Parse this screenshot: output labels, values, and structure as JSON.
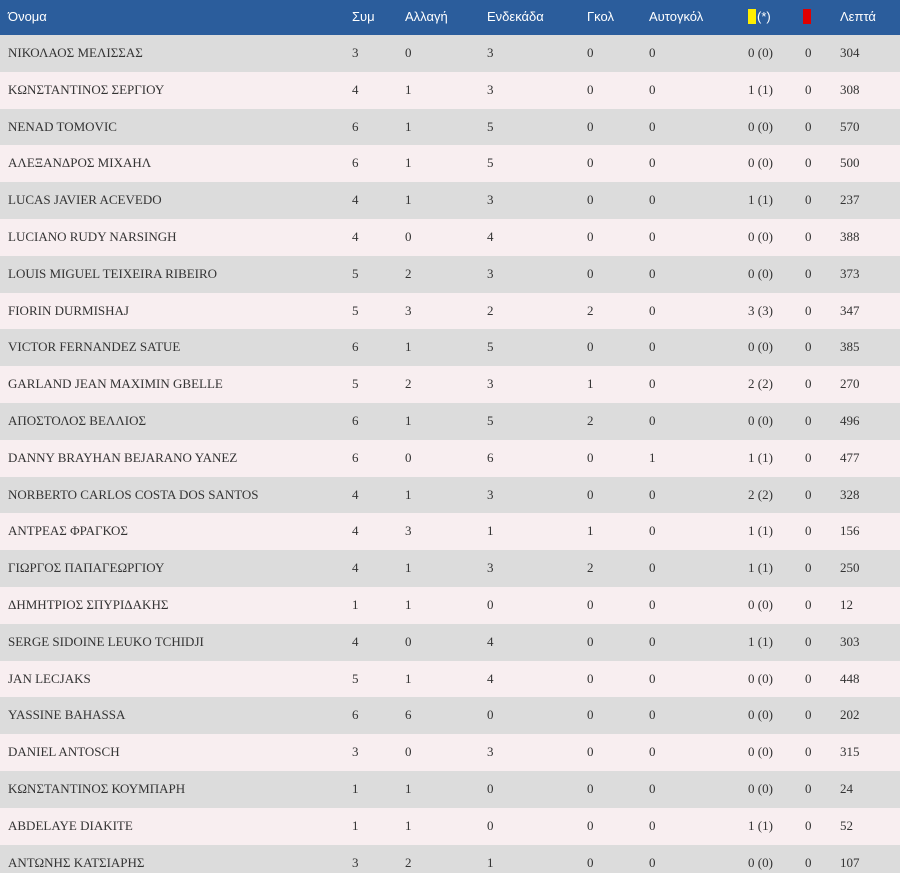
{
  "colors": {
    "header_bg": "#2b5d9c",
    "row_odd": "#dcdcdc",
    "row_even": "#f8eef0",
    "yellow_card": "#ffee00",
    "red_card": "#e00000"
  },
  "table": {
    "headers": {
      "name": "Όνομα",
      "apps": "Συμ",
      "subs": "Αλλαγή",
      "starts": "Ενδεκάδα",
      "goals": "Γκολ",
      "own_goals": "Αυτογκόλ",
      "yellow": "(*)",
      "yellow_icon": "yellow-card-icon",
      "red_icon": "red-card-icon",
      "minutes": "Λεπτά"
    },
    "rows": [
      {
        "name": "ΝΙΚΟΛΑΟΣ ΜΕΛΙΣΣΑΣ",
        "apps": "3",
        "subs": "0",
        "starts": "3",
        "goals": "0",
        "own_goals": "0",
        "yellow": "0 (0)",
        "red": "0",
        "minutes": "304"
      },
      {
        "name": "ΚΩΝΣΤΑΝΤΙΝΟΣ ΣΕΡΓΙΟΥ",
        "apps": "4",
        "subs": "1",
        "starts": "3",
        "goals": "0",
        "own_goals": "0",
        "yellow": "1 (1)",
        "red": "0",
        "minutes": "308"
      },
      {
        "name": "NENAD TOMOVIC",
        "apps": "6",
        "subs": "1",
        "starts": "5",
        "goals": "0",
        "own_goals": "0",
        "yellow": "0 (0)",
        "red": "0",
        "minutes": "570"
      },
      {
        "name": "ΑΛΕΞΑΝΔΡΟΣ ΜΙΧΑΗΛ",
        "apps": "6",
        "subs": "1",
        "starts": "5",
        "goals": "0",
        "own_goals": "0",
        "yellow": "0 (0)",
        "red": "0",
        "minutes": "500"
      },
      {
        "name": "LUCAS JAVIER ACEVEDO",
        "apps": "4",
        "subs": "1",
        "starts": "3",
        "goals": "0",
        "own_goals": "0",
        "yellow": "1 (1)",
        "red": "0",
        "minutes": "237"
      },
      {
        "name": "LUCIANO RUDY NARSINGH",
        "apps": "4",
        "subs": "0",
        "starts": "4",
        "goals": "0",
        "own_goals": "0",
        "yellow": "0 (0)",
        "red": "0",
        "minutes": "388"
      },
      {
        "name": "LOUIS MIGUEL TEIXEIRA RIBEIRO",
        "apps": "5",
        "subs": "2",
        "starts": "3",
        "goals": "0",
        "own_goals": "0",
        "yellow": "0 (0)",
        "red": "0",
        "minutes": "373"
      },
      {
        "name": "FIORIN DURMISHAJ",
        "apps": "5",
        "subs": "3",
        "starts": "2",
        "goals": "2",
        "own_goals": "0",
        "yellow": "3 (3)",
        "red": "0",
        "minutes": "347"
      },
      {
        "name": "VICTOR FERNANDEZ SATUE",
        "apps": "6",
        "subs": "1",
        "starts": "5",
        "goals": "0",
        "own_goals": "0",
        "yellow": "0 (0)",
        "red": "0",
        "minutes": "385"
      },
      {
        "name": "GARLAND JEAN MAXIMIN GBELLE",
        "apps": "5",
        "subs": "2",
        "starts": "3",
        "goals": "1",
        "own_goals": "0",
        "yellow": "2 (2)",
        "red": "0",
        "minutes": "270"
      },
      {
        "name": "ΑΠΟΣΤΟΛΟΣ ΒΕΛΛΙΟΣ",
        "apps": "6",
        "subs": "1",
        "starts": "5",
        "goals": "2",
        "own_goals": "0",
        "yellow": "0 (0)",
        "red": "0",
        "minutes": "496"
      },
      {
        "name": "DANNY BRAYHAN BEJARANO YANEZ",
        "apps": "6",
        "subs": "0",
        "starts": "6",
        "goals": "0",
        "own_goals": "1",
        "yellow": "1 (1)",
        "red": "0",
        "minutes": "477"
      },
      {
        "name": "NORBERTO CARLOS COSTA DOS SANTOS",
        "apps": "4",
        "subs": "1",
        "starts": "3",
        "goals": "0",
        "own_goals": "0",
        "yellow": "2 (2)",
        "red": "0",
        "minutes": "328"
      },
      {
        "name": "ΑΝΤΡΕΑΣ ΦΡΑΓΚΟΣ",
        "apps": "4",
        "subs": "3",
        "starts": "1",
        "goals": "1",
        "own_goals": "0",
        "yellow": "1 (1)",
        "red": "0",
        "minutes": "156"
      },
      {
        "name": "ΓΙΩΡΓΟΣ ΠΑΠΑΓΕΩΡΓΙΟΥ",
        "apps": "4",
        "subs": "1",
        "starts": "3",
        "goals": "2",
        "own_goals": "0",
        "yellow": "1 (1)",
        "red": "0",
        "minutes": "250"
      },
      {
        "name": "ΔΗΜΗΤΡΙΟΣ ΣΠΥΡΙΔΑΚΗΣ",
        "apps": "1",
        "subs": "1",
        "starts": "0",
        "goals": "0",
        "own_goals": "0",
        "yellow": "0 (0)",
        "red": "0",
        "minutes": "12"
      },
      {
        "name": "SERGE SIDOINE LEUKO TCHIDJI",
        "apps": "4",
        "subs": "0",
        "starts": "4",
        "goals": "0",
        "own_goals": "0",
        "yellow": "1 (1)",
        "red": "0",
        "minutes": "303"
      },
      {
        "name": "JAN LECJAKS",
        "apps": "5",
        "subs": "1",
        "starts": "4",
        "goals": "0",
        "own_goals": "0",
        "yellow": "0 (0)",
        "red": "0",
        "minutes": "448"
      },
      {
        "name": "YASSINE BAHASSA",
        "apps": "6",
        "subs": "6",
        "starts": "0",
        "goals": "0",
        "own_goals": "0",
        "yellow": "0 (0)",
        "red": "0",
        "minutes": "202"
      },
      {
        "name": "DANIEL ANTOSCH",
        "apps": "3",
        "subs": "0",
        "starts": "3",
        "goals": "0",
        "own_goals": "0",
        "yellow": "0 (0)",
        "red": "0",
        "minutes": "315"
      },
      {
        "name": "ΚΩΝΣΤΑΝΤΙΝΟΣ ΚΟΥΜΠΑΡΗ",
        "apps": "1",
        "subs": "1",
        "starts": "0",
        "goals": "0",
        "own_goals": "0",
        "yellow": "0 (0)",
        "red": "0",
        "minutes": "24"
      },
      {
        "name": "ABDELAYE DIAKITE",
        "apps": "1",
        "subs": "1",
        "starts": "0",
        "goals": "0",
        "own_goals": "0",
        "yellow": "1 (1)",
        "red": "0",
        "minutes": "52"
      },
      {
        "name": "ΑΝΤΩΝΗΣ ΚΑΤΣΙΑΡΗΣ",
        "apps": "3",
        "subs": "2",
        "starts": "1",
        "goals": "0",
        "own_goals": "0",
        "yellow": "0 (0)",
        "red": "0",
        "minutes": "107"
      }
    ]
  }
}
